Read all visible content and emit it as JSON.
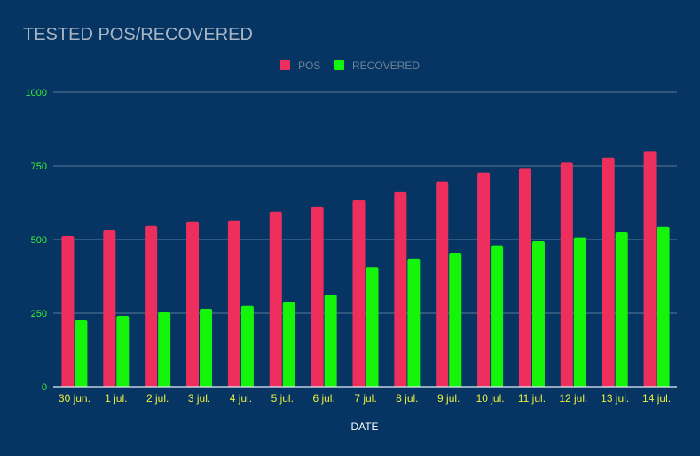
{
  "chart_data": {
    "type": "bar",
    "title": "TESTED POS/RECOVERED",
    "xlabel": "DATE",
    "ylabel": "",
    "ylim": [
      0,
      1000
    ],
    "yticks": [
      0,
      250,
      500,
      750,
      1000
    ],
    "grid": true,
    "legend_position": "top-center",
    "categories": [
      "30 jun.",
      "1 jul.",
      "2 jul.",
      "3 jul.",
      "4 jul.",
      "5 jul.",
      "6 jul.",
      "7 jul.",
      "8 jul.",
      "9 jul.",
      "10 jul.",
      "11 jul.",
      "12 jul.",
      "13 jul.",
      "14 jul."
    ],
    "series": [
      {
        "name": "POS",
        "color": "#ee2f5d",
        "values": [
          512,
          533,
          546,
          561,
          564,
          594,
          612,
          633,
          663,
          697,
          727,
          743,
          761,
          778,
          800
        ]
      },
      {
        "name": "RECOVERED",
        "color": "#14f50a",
        "values": [
          226,
          241,
          253,
          265,
          275,
          289,
          313,
          406,
          434,
          455,
          480,
          494,
          507,
          524,
          543
        ]
      }
    ]
  },
  "colors": {
    "background": "#063564",
    "tick_y": "#35f135",
    "tick_x": "#ecec3c"
  }
}
